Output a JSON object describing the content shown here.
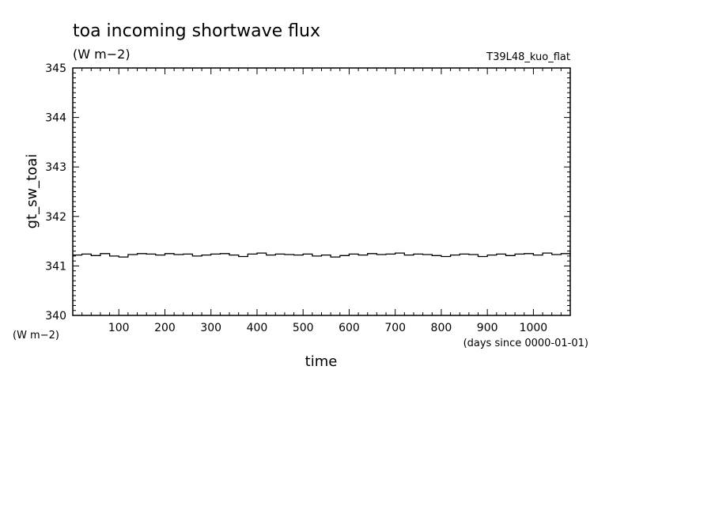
{
  "chart_data": {
    "type": "line",
    "title": "toa incoming shortwave flux",
    "units": "(W m−2)",
    "run_label": "T39L48_kuo_flat",
    "ylabel": "gt_sw_toai",
    "yunits": "(W m−2)",
    "xlabel": "time",
    "xunits": "(days since 0000-01-01)",
    "xlim": [
      0,
      1080
    ],
    "ylim": [
      340,
      345
    ],
    "xticks": [
      100,
      200,
      300,
      400,
      500,
      600,
      700,
      800,
      900,
      1000
    ],
    "yticks": [
      340,
      341,
      342,
      343,
      344,
      345
    ],
    "x": [
      0,
      20,
      40,
      60,
      80,
      100,
      120,
      140,
      160,
      180,
      200,
      220,
      240,
      260,
      280,
      300,
      320,
      340,
      360,
      380,
      400,
      420,
      440,
      460,
      480,
      500,
      520,
      540,
      560,
      580,
      600,
      620,
      640,
      660,
      680,
      700,
      720,
      740,
      760,
      780,
      800,
      820,
      840,
      860,
      880,
      900,
      920,
      940,
      960,
      980,
      1000,
      1020,
      1040,
      1060,
      1080
    ],
    "y": [
      341.22,
      341.24,
      341.21,
      341.25,
      341.2,
      341.18,
      341.23,
      341.25,
      341.24,
      341.22,
      341.25,
      341.23,
      341.24,
      341.2,
      341.22,
      341.24,
      341.25,
      341.22,
      341.19,
      341.24,
      341.26,
      341.22,
      341.24,
      341.23,
      341.22,
      341.24,
      341.2,
      341.22,
      341.18,
      341.21,
      341.24,
      341.22,
      341.25,
      341.23,
      341.24,
      341.26,
      341.22,
      341.24,
      341.23,
      341.21,
      341.19,
      341.22,
      341.24,
      341.23,
      341.19,
      341.22,
      341.24,
      341.21,
      341.24,
      341.25,
      341.22,
      341.26,
      341.23,
      341.25,
      341.22
    ]
  }
}
